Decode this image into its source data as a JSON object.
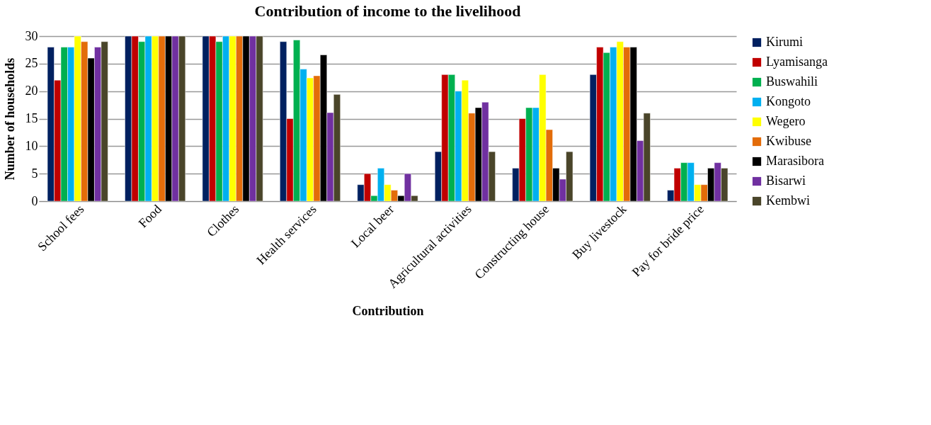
{
  "chart_data": {
    "type": "bar",
    "title": "Contribution of income to the livelihood",
    "xlabel": "Contribution",
    "ylabel": "Number of households",
    "categories": [
      "School fees",
      "Food",
      "Clothes",
      "Health services",
      "Local beer",
      "Agricultural activities",
      "Constructing house",
      "Buy livestock",
      "Pay for bride price"
    ],
    "series": [
      {
        "name": "Kirumi",
        "color": "#002060",
        "values": [
          28,
          30,
          30,
          29,
          3,
          9,
          6,
          23,
          2
        ]
      },
      {
        "name": "Lyamisanga",
        "color": "#c00000",
        "values": [
          22,
          30,
          30,
          15,
          5,
          23,
          15,
          28,
          6
        ]
      },
      {
        "name": "Buswahili",
        "color": "#00b050",
        "values": [
          28,
          29,
          29,
          29.3,
          1,
          23,
          17,
          27,
          7
        ]
      },
      {
        "name": "Kongoto",
        "color": "#00b0f0",
        "values": [
          28,
          30,
          30,
          24,
          6,
          20,
          17,
          28,
          7
        ]
      },
      {
        "name": "Wegero",
        "color": "#ffff00",
        "values": [
          30,
          30,
          30,
          22.4,
          3,
          22,
          23,
          29,
          3
        ]
      },
      {
        "name": "Kwibuse",
        "color": "#e36c09",
        "values": [
          29,
          30,
          30,
          22.8,
          2,
          16,
          13,
          28,
          3
        ]
      },
      {
        "name": "Marasibora",
        "color": "#000000",
        "values": [
          26,
          30,
          30,
          26.6,
          1,
          17,
          6,
          28,
          6
        ]
      },
      {
        "name": "Bisarwi",
        "color": "#7030a0",
        "values": [
          28,
          30,
          30,
          16.1,
          5,
          18,
          4,
          11,
          7
        ]
      },
      {
        "name": "Kembwi",
        "color": "#4a452a",
        "values": [
          29,
          30,
          30,
          19.4,
          1,
          9,
          9,
          16,
          6
        ]
      }
    ],
    "ylim": [
      0,
      30
    ],
    "yticks": [
      0,
      5,
      10,
      15,
      20,
      25,
      30
    ],
    "grid": "y",
    "legend": "right"
  }
}
